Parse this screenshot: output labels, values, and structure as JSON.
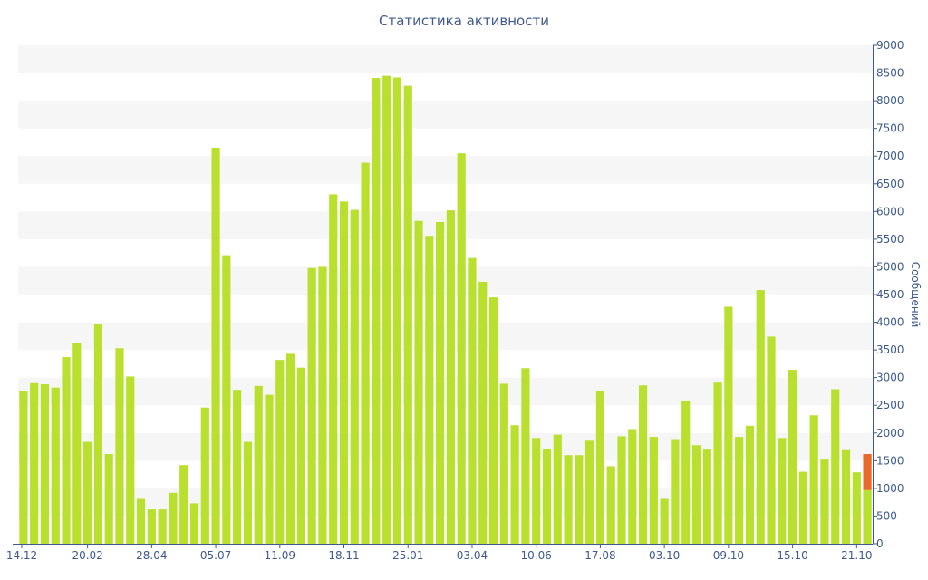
{
  "chart_data": {
    "type": "bar",
    "title": "Статистика активности",
    "xlabel": "",
    "ylabel": "Сообщений",
    "ylim": [
      0,
      9000
    ],
    "y_axis_side": "right",
    "y_ticks": [
      "0",
      "500",
      "1000",
      "1500",
      "2000",
      "2500",
      "3000",
      "3500",
      "4000",
      "4500",
      "5000",
      "5500",
      "6000",
      "6500",
      "7000",
      "7500",
      "8000",
      "8500",
      "9000"
    ],
    "x_tick_labels": [
      {
        "index": 0,
        "label": "14.12"
      },
      {
        "index": 6,
        "label": "20.02"
      },
      {
        "index": 12,
        "label": "28.04"
      },
      {
        "index": 18,
        "label": "05.07"
      },
      {
        "index": 24,
        "label": "11.09"
      },
      {
        "index": 30,
        "label": "18.11"
      },
      {
        "index": 36,
        "label": "25.01"
      },
      {
        "index": 42,
        "label": "03.04"
      },
      {
        "index": 48,
        "label": "10.06"
      },
      {
        "index": 54,
        "label": "17.08"
      },
      {
        "index": 60,
        "label": "03.10"
      },
      {
        "index": 66,
        "label": "09.10"
      },
      {
        "index": 72,
        "label": "15.10"
      },
      {
        "index": 78,
        "label": "21.10"
      }
    ],
    "series": [
      {
        "color": "#b9e02e",
        "values": [
          2750,
          2900,
          2880,
          2820,
          3370,
          3620,
          1840,
          3970,
          1620,
          3530,
          3020,
          810,
          620,
          620,
          920,
          1420,
          730,
          2460,
          7150,
          5210,
          2780,
          1840,
          2850,
          2690,
          3320,
          3430,
          3180,
          4980,
          5000,
          6310,
          6180,
          6030,
          6880,
          8410,
          8450,
          8420,
          8270,
          5830,
          5560,
          5810,
          6020,
          7050,
          5160,
          4730,
          4450,
          2890,
          2140,
          3170,
          1910,
          1710,
          1970,
          1600,
          1600,
          1860,
          2750,
          1400,
          1940,
          2070,
          2860,
          1930,
          810,
          1890,
          2580,
          1780,
          1700,
          2910,
          4280,
          1930,
          2130,
          4580,
          3740,
          1910,
          3140,
          1300,
          2320,
          1520,
          2790,
          1690,
          1290,
          970
        ]
      },
      {
        "color": "#e8692a",
        "stack_on_last": true,
        "values": [
          650
        ]
      }
    ],
    "grid": "horizontal bands",
    "legend": "none"
  }
}
